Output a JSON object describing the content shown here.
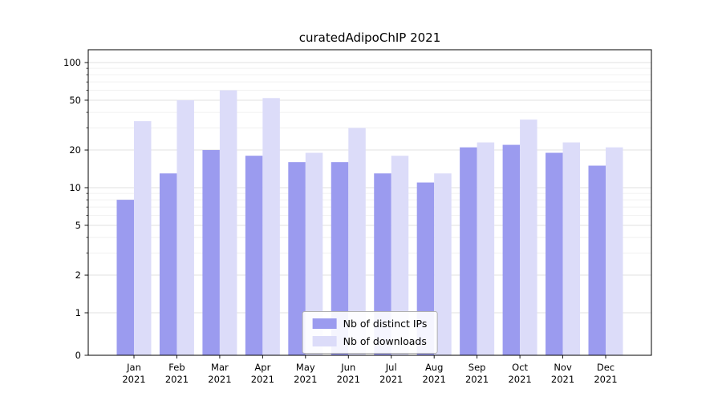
{
  "title": "curatedAdipoChIP 2021",
  "chart_data": {
    "type": "bar",
    "title": "curatedAdipoChIP 2021",
    "y_scale": "symlog",
    "grid": true,
    "legend_position": "lower center",
    "ylim": [
      0,
      130
    ],
    "y_ticks": [
      0,
      1,
      2,
      5,
      10,
      20,
      50,
      100
    ],
    "y_minor_ticks": [
      3,
      4,
      6,
      7,
      8,
      9,
      30,
      40,
      60,
      70,
      80,
      90
    ],
    "categories": [
      "Jan 2021",
      "Feb 2021",
      "Mar 2021",
      "Apr 2021",
      "May 2021",
      "Jun 2021",
      "Jul 2021",
      "Aug 2021",
      "Sep 2021",
      "Oct 2021",
      "Nov 2021",
      "Dec 2021"
    ],
    "series": [
      {
        "name": "Nb of distinct IPs",
        "color": "#9b9bef",
        "values": [
          8,
          13,
          20,
          18,
          16,
          16,
          13,
          11,
          21,
          22,
          19,
          15
        ]
      },
      {
        "name": "Nb of downloads",
        "color": "#dcdcf9",
        "values": [
          34,
          50,
          60,
          52,
          19,
          30,
          18,
          13,
          23,
          35,
          23,
          21
        ]
      }
    ]
  },
  "colors": {
    "axis": "#000000",
    "major_grid": "#e2e2e2",
    "minor_grid": "#f0f0f0",
    "text": "#000000"
  }
}
